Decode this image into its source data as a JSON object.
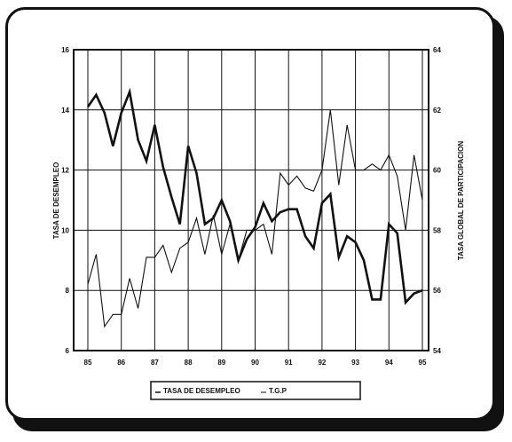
{
  "chart_data": {
    "type": "line",
    "title": "",
    "xlabel": "",
    "ylabel_left": "TASA DE DESEMPLEO",
    "ylabel_right": "TASA GLOBAL DE PARTICIPACION",
    "x_tick_labels": [
      "85",
      "86",
      "87",
      "88",
      "89",
      "90",
      "91",
      "92",
      "93",
      "94",
      "95"
    ],
    "y_left_ticks": [
      "6",
      "8",
      "10",
      "12",
      "14",
      "16"
    ],
    "y_right_ticks": [
      "54",
      "56",
      "58",
      "60",
      "62",
      "64"
    ],
    "ylim_left": [
      6,
      16
    ],
    "ylim_right": [
      54,
      64
    ],
    "grid": true,
    "legend_position": "bottom",
    "series": [
      {
        "name": "TASA DE DESEMPLEO",
        "axis": "left",
        "color": "#111111",
        "style": "thick",
        "values": [
          14.1,
          14.5,
          13.9,
          12.8,
          13.9,
          14.6,
          13.0,
          12.3,
          13.5,
          12.1,
          11.1,
          10.2,
          12.8,
          11.9,
          10.2,
          10.4,
          11.0,
          10.3,
          9.0,
          9.7,
          10.1,
          10.9,
          10.3,
          10.6,
          10.7,
          10.7,
          9.8,
          9.4,
          10.9,
          11.2,
          9.1,
          9.8,
          9.6,
          9.0,
          7.7,
          7.7,
          10.2,
          9.9,
          7.6,
          7.9,
          8.0
        ]
      },
      {
        "name": "T.G.P",
        "axis": "right",
        "color": "#111111",
        "style": "thin",
        "values": [
          56.2,
          57.2,
          54.8,
          55.2,
          55.2,
          56.4,
          55.4,
          57.1,
          57.1,
          57.5,
          56.6,
          57.4,
          57.6,
          58.4,
          57.2,
          58.5,
          57.2,
          58.2,
          57.0,
          58.0,
          58.0,
          58.2,
          57.2,
          59.9,
          59.5,
          59.8,
          59.4,
          59.3,
          60.0,
          62.0,
          59.5,
          61.5,
          60.0,
          60.0,
          60.2,
          60.0,
          60.5,
          59.8,
          58.0,
          60.5,
          59.0
        ]
      }
    ]
  }
}
